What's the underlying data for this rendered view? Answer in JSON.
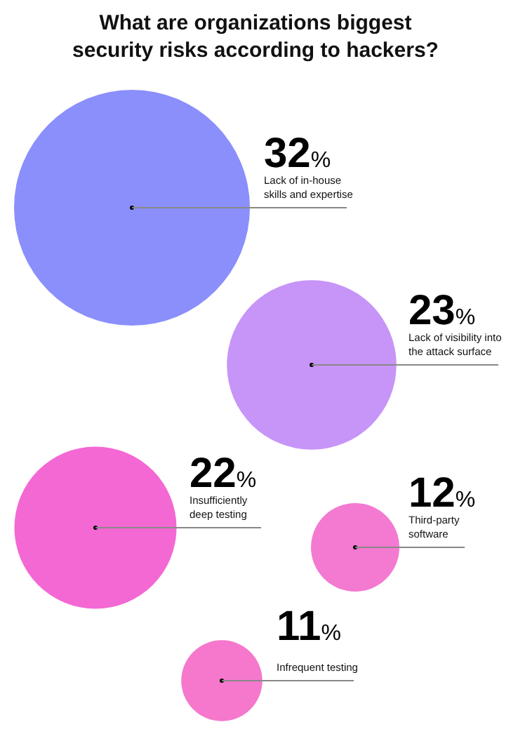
{
  "chart_data": {
    "type": "other",
    "title": "What are organizations biggest security risks according to hackers?",
    "categories": [
      "Lack of in-house skills and expertise",
      "Lack of visibility into the attack surface",
      "Insufficiently deep testing",
      "Third-party software",
      "Infrequent testing"
    ],
    "values": [
      32,
      23,
      22,
      12,
      11
    ],
    "colors": [
      "#8a8ffb",
      "#c794f8",
      "#f468d4",
      "#f37ad0",
      "#f578cc"
    ],
    "value_labels": [
      "32%",
      "23%",
      "22%",
      "12%",
      "11%"
    ]
  }
}
